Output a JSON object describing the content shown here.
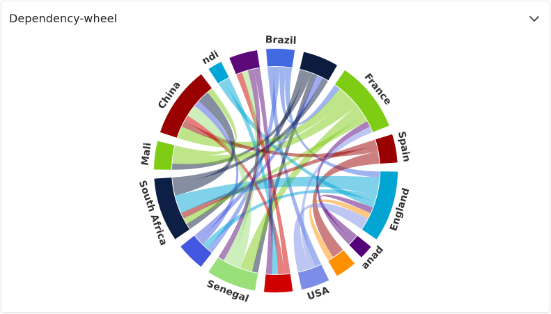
{
  "card": {
    "title": "Dependency-wheel",
    "collapse_icon": "chevron-down-icon"
  },
  "chart_data": {
    "type": "dependency-wheel",
    "title": "Dependency-wheel",
    "nodes": [
      {
        "name": "Brazil",
        "color": "#4169e1"
      },
      {
        "name": "",
        "color": "#0d1b3e"
      },
      {
        "name": "France",
        "color": "#7fcc15"
      },
      {
        "name": "Spain",
        "color": "#990000"
      },
      {
        "name": "England",
        "color": "#00a5d4"
      },
      {
        "name": "anad",
        "color": "#55007a"
      },
      {
        "name": "",
        "color": "#ff9000"
      },
      {
        "name": "USA",
        "color": "#7b8de8"
      },
      {
        "name": "",
        "color": "#d00000"
      },
      {
        "name": "Senegal",
        "color": "#99e07a"
      },
      {
        "name": "",
        "color": "#4457e0"
      },
      {
        "name": "South Africa",
        "color": "#0e1f45"
      },
      {
        "name": "Mali",
        "color": "#7ecd14"
      },
      {
        "name": "China",
        "color": "#990000"
      },
      {
        "name": "ndi",
        "color": "#00a7d6"
      },
      {
        "name": "",
        "color": "#5c0a7a"
      }
    ],
    "links": [
      {
        "from": 0,
        "to": 7,
        "value": 1
      },
      {
        "from": 0,
        "to": 10,
        "value": 1
      },
      {
        "from": 0,
        "to": 2,
        "value": 1
      },
      {
        "from": 0,
        "to": 4,
        "value": 1
      },
      {
        "from": 1,
        "to": 11,
        "value": 1
      },
      {
        "from": 1,
        "to": 12,
        "value": 1
      },
      {
        "from": 1,
        "to": 9,
        "value": 1
      },
      {
        "from": 2,
        "to": 13,
        "value": 2
      },
      {
        "from": 2,
        "to": 12,
        "value": 2
      },
      {
        "from": 2,
        "to": 9,
        "value": 2
      },
      {
        "from": 2,
        "to": 11,
        "value": 1
      },
      {
        "from": 3,
        "to": 11,
        "value": 1
      },
      {
        "from": 3,
        "to": 13,
        "value": 1
      },
      {
        "from": 3,
        "to": 6,
        "value": 2
      },
      {
        "from": 4,
        "to": 11,
        "value": 3
      },
      {
        "from": 4,
        "to": 10,
        "value": 1
      },
      {
        "from": 4,
        "to": 14,
        "value": 1
      },
      {
        "from": 5,
        "to": 4,
        "value": 1
      },
      {
        "from": 5,
        "to": 2,
        "value": 1
      },
      {
        "from": 6,
        "to": 4,
        "value": 1
      },
      {
        "from": 7,
        "to": 2,
        "value": 1
      },
      {
        "from": 7,
        "to": 4,
        "value": 2
      },
      {
        "from": 8,
        "to": 15,
        "value": 1
      },
      {
        "from": 8,
        "to": 13,
        "value": 1
      },
      {
        "from": 9,
        "to": 13,
        "value": 2
      },
      {
        "from": 9,
        "to": 15,
        "value": 1
      },
      {
        "from": 10,
        "to": 13,
        "value": 1
      },
      {
        "from": 10,
        "to": 1,
        "value": 1
      },
      {
        "from": 11,
        "to": 13,
        "value": 2
      },
      {
        "from": 11,
        "to": 1,
        "value": 1
      },
      {
        "from": 12,
        "to": 13,
        "value": 1
      },
      {
        "from": 14,
        "to": 8,
        "value": 1
      },
      {
        "from": 15,
        "to": 9,
        "value": 1
      },
      {
        "from": 15,
        "to": 8,
        "value": 1
      }
    ]
  }
}
